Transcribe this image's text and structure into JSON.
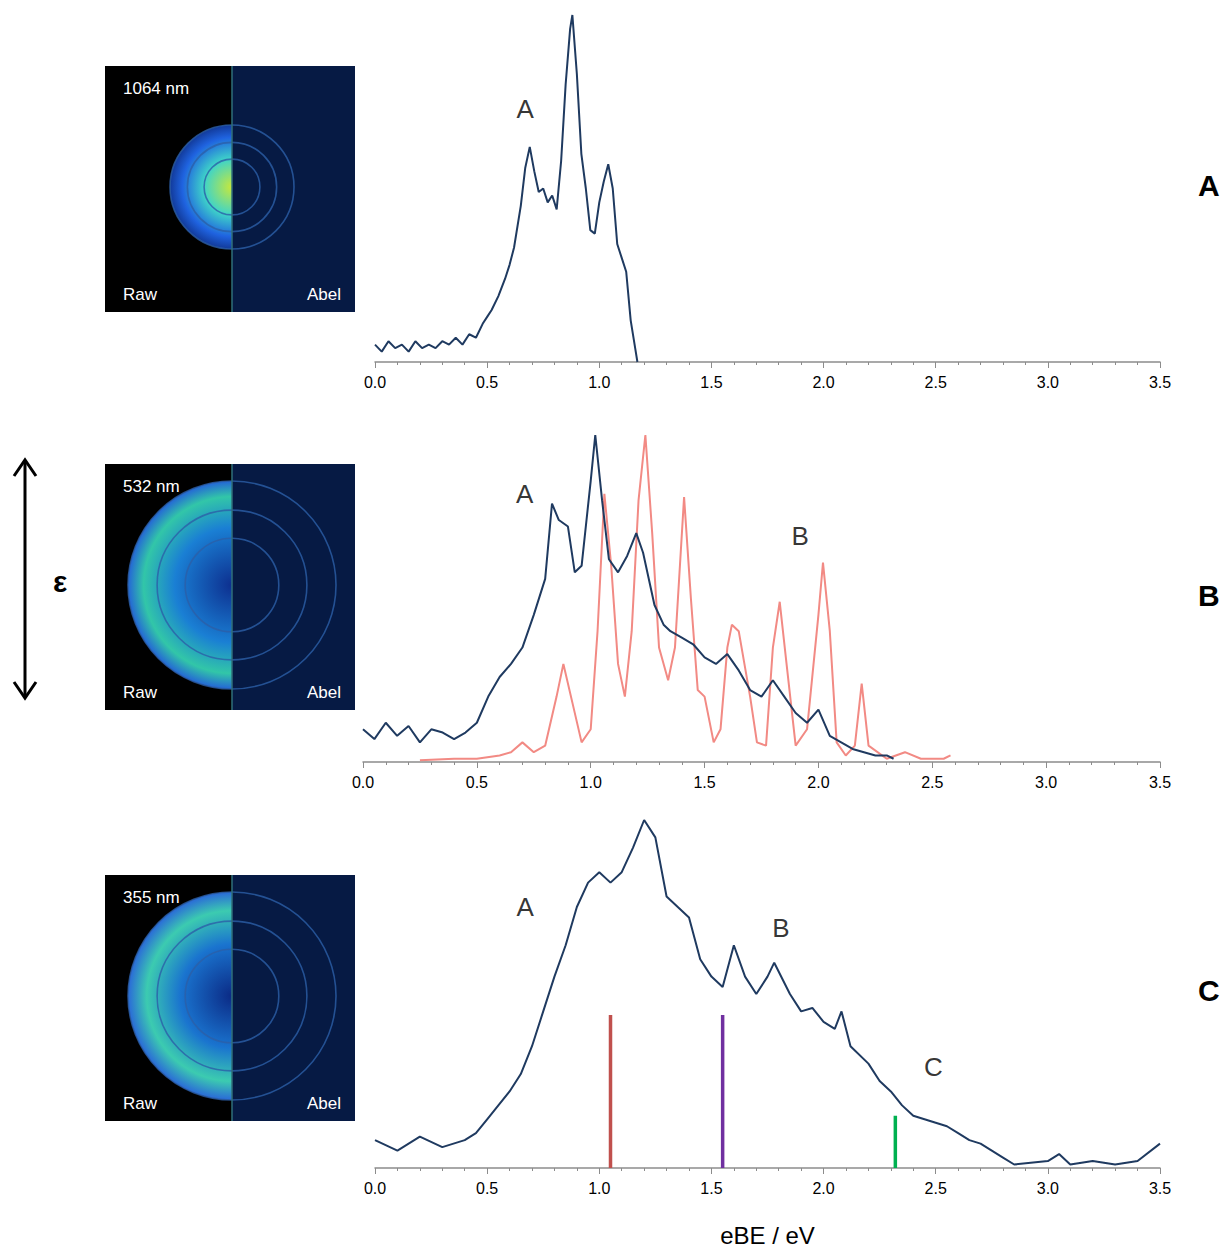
{
  "polarization_label": "ε",
  "chart_data": [
    {
      "type": "line",
      "panel": "A",
      "title": "1064 nm",
      "image_labels": [
        "Raw",
        "Abel"
      ],
      "xlim": [
        0,
        3.5
      ],
      "ylim": [
        0,
        1
      ],
      "xticks": [
        {
          "value": 0,
          "label": "0.0"
        },
        0.5,
        {
          "value": 1,
          "label": "1.0"
        },
        1.5,
        {
          "value": 2,
          "label": "2.0"
        },
        2.5,
        {
          "value": 3,
          "label": "3.0"
        },
        3.5
      ],
      "tick_labels": "x",
      "grid": false,
      "series": [
        {
          "color": "#1f3a60",
          "x": [
            0,
            0.03,
            0.06,
            0.09,
            0.12,
            0.15,
            0.18,
            0.21,
            0.24,
            0.27,
            0.3,
            0.33,
            0.36,
            0.39,
            0.42,
            0.45,
            0.48,
            0.5,
            0.52,
            0.55,
            0.58,
            0.6,
            0.62,
            0.65,
            0.67,
            0.69,
            0.71,
            0.73,
            0.75,
            0.77,
            0.79,
            0.81,
            0.83,
            0.85,
            0.87,
            0.88,
            0.9,
            0.92,
            0.94,
            0.96,
            0.98,
            1.0,
            1.02,
            1.04,
            1.06,
            1.08,
            1.1,
            1.12,
            1.14,
            1.16,
            1.17
          ],
          "values": [
            0.05,
            0.03,
            0.06,
            0.04,
            0.05,
            0.03,
            0.06,
            0.04,
            0.05,
            0.04,
            0.06,
            0.05,
            0.07,
            0.05,
            0.08,
            0.07,
            0.11,
            0.13,
            0.15,
            0.19,
            0.24,
            0.28,
            0.33,
            0.45,
            0.56,
            0.62,
            0.55,
            0.49,
            0.5,
            0.46,
            0.48,
            0.44,
            0.58,
            0.8,
            0.96,
            1.0,
            0.83,
            0.6,
            0.5,
            0.38,
            0.37,
            0.46,
            0.52,
            0.57,
            0.5,
            0.34,
            0.3,
            0.26,
            0.12,
            0.04,
            0.0
          ]
        }
      ],
      "annotations": [
        {
          "text": "A",
          "x": 0.67,
          "y": 0.73
        }
      ]
    },
    {
      "type": "line",
      "panel": "B",
      "title": "532 nm",
      "image_labels": [
        "Raw",
        "Abel"
      ],
      "xlim": [
        0,
        3.5
      ],
      "ylim": [
        0,
        1
      ],
      "xticks": [
        {
          "value": 0,
          "label": "0.0"
        },
        0.5,
        {
          "value": 1,
          "label": "1.0"
        },
        1.5,
        {
          "value": 2,
          "label": "2.0"
        },
        2.5,
        {
          "value": 3,
          "label": "3.0"
        },
        3.5
      ],
      "tick_labels": "x",
      "grid": false,
      "series": [
        {
          "color": "#f28a84",
          "x": [
            0.25,
            0.4,
            0.5,
            0.6,
            0.65,
            0.7,
            0.75,
            0.8,
            0.85,
            0.88,
            0.92,
            0.96,
            1.0,
            1.03,
            1.06,
            1.09,
            1.12,
            1.15,
            1.18,
            1.21,
            1.24,
            1.27,
            1.3,
            1.34,
            1.37,
            1.41,
            1.44,
            1.47,
            1.5,
            1.54,
            1.57,
            1.6,
            1.62,
            1.65,
            1.7,
            1.73,
            1.77,
            1.8,
            1.83,
            1.86,
            1.9,
            1.95,
            2.0,
            2.02,
            2.05,
            2.08,
            2.12,
            2.16,
            2.19,
            2.22,
            2.3,
            2.38,
            2.45,
            2.55,
            2.58
          ],
          "values": [
            0.005,
            0.01,
            0.01,
            0.02,
            0.03,
            0.06,
            0.03,
            0.05,
            0.2,
            0.3,
            0.18,
            0.06,
            0.1,
            0.4,
            0.82,
            0.6,
            0.3,
            0.2,
            0.4,
            0.8,
            1.0,
            0.7,
            0.35,
            0.25,
            0.35,
            0.81,
            0.5,
            0.22,
            0.2,
            0.06,
            0.1,
            0.35,
            0.42,
            0.4,
            0.2,
            0.06,
            0.05,
            0.35,
            0.49,
            0.3,
            0.05,
            0.1,
            0.45,
            0.61,
            0.4,
            0.06,
            0.02,
            0.05,
            0.24,
            0.05,
            0.01,
            0.03,
            0.01,
            0.01,
            0.02
          ]
        },
        {
          "color": "#1f3a60",
          "x": [
            0,
            0.05,
            0.1,
            0.15,
            0.2,
            0.25,
            0.3,
            0.35,
            0.4,
            0.45,
            0.5,
            0.55,
            0.6,
            0.65,
            0.7,
            0.75,
            0.8,
            0.83,
            0.86,
            0.9,
            0.93,
            0.96,
            1.0,
            1.02,
            1.05,
            1.08,
            1.12,
            1.16,
            1.2,
            1.23,
            1.28,
            1.32,
            1.35,
            1.4,
            1.45,
            1.5,
            1.55,
            1.6,
            1.65,
            1.7,
            1.75,
            1.8,
            1.85,
            1.9,
            1.95,
            2.0,
            2.05,
            2.1,
            2.15,
            2.2,
            2.25,
            2.3,
            2.33
          ],
          "values": [
            0.1,
            0.07,
            0.12,
            0.08,
            0.11,
            0.06,
            0.1,
            0.09,
            0.07,
            0.09,
            0.12,
            0.2,
            0.26,
            0.3,
            0.35,
            0.45,
            0.56,
            0.79,
            0.74,
            0.72,
            0.58,
            0.6,
            0.86,
            1.0,
            0.8,
            0.62,
            0.58,
            0.63,
            0.7,
            0.64,
            0.48,
            0.42,
            0.4,
            0.38,
            0.36,
            0.32,
            0.3,
            0.33,
            0.28,
            0.22,
            0.2,
            0.25,
            0.2,
            0.15,
            0.12,
            0.16,
            0.08,
            0.06,
            0.04,
            0.03,
            0.02,
            0.02,
            0.01
          ]
        }
      ],
      "annotations": [
        {
          "text": "A",
          "x": 0.71,
          "y": 0.82
        },
        {
          "text": "B",
          "x": 1.92,
          "y": 0.69
        }
      ]
    },
    {
      "type": "line",
      "panel": "C",
      "title": "355 nm",
      "image_labels": [
        "Raw",
        "Abel"
      ],
      "xlabel": "eBE / eV",
      "xlim": [
        0,
        3.5
      ],
      "ylim": [
        0,
        1
      ],
      "xticks": [
        {
          "value": 0,
          "label": "0.0"
        },
        0.5,
        {
          "value": 1,
          "label": "1.0"
        },
        1.5,
        {
          "value": 2,
          "label": "2.0"
        },
        2.5,
        {
          "value": 3,
          "label": "3.0"
        },
        3.5
      ],
      "tick_labels": "x",
      "grid": false,
      "series": [
        {
          "color": "#1f3a60",
          "x": [
            0,
            0.1,
            0.2,
            0.3,
            0.4,
            0.45,
            0.5,
            0.55,
            0.6,
            0.65,
            0.7,
            0.75,
            0.8,
            0.85,
            0.9,
            0.95,
            1.0,
            1.05,
            1.1,
            1.15,
            1.2,
            1.25,
            1.3,
            1.35,
            1.4,
            1.45,
            1.5,
            1.55,
            1.6,
            1.65,
            1.7,
            1.75,
            1.78,
            1.85,
            1.9,
            1.95,
            2.0,
            2.05,
            2.08,
            2.12,
            2.2,
            2.25,
            2.3,
            2.35,
            2.4,
            2.45,
            2.5,
            2.55,
            2.6,
            2.65,
            2.7,
            2.75,
            2.8,
            2.85,
            3.0,
            3.05,
            3.1,
            3.2,
            3.3,
            3.4,
            3.5
          ],
          "values": [
            0.08,
            0.05,
            0.09,
            0.06,
            0.08,
            0.1,
            0.14,
            0.18,
            0.22,
            0.27,
            0.35,
            0.45,
            0.55,
            0.64,
            0.75,
            0.82,
            0.85,
            0.82,
            0.85,
            0.92,
            1.0,
            0.95,
            0.78,
            0.75,
            0.72,
            0.6,
            0.55,
            0.52,
            0.64,
            0.55,
            0.5,
            0.55,
            0.59,
            0.5,
            0.45,
            0.46,
            0.42,
            0.4,
            0.45,
            0.35,
            0.3,
            0.25,
            0.22,
            0.18,
            0.15,
            0.14,
            0.13,
            0.12,
            0.1,
            0.08,
            0.07,
            0.05,
            0.03,
            0.01,
            0.02,
            0.04,
            0.01,
            0.02,
            0.01,
            0.02,
            0.07
          ]
        }
      ],
      "vlines": [
        {
          "x": 1.05,
          "y": 0.44,
          "color": "#c0504d"
        },
        {
          "x": 1.55,
          "y": 0.44,
          "color": "#7030a0"
        },
        {
          "x": 2.32,
          "y": 0.15,
          "color": "#00b050"
        }
      ],
      "annotations": [
        {
          "text": "A",
          "x": 0.67,
          "y": 0.75
        },
        {
          "text": "B",
          "x": 1.81,
          "y": 0.69
        },
        {
          "text": "C",
          "x": 2.49,
          "y": 0.29
        }
      ]
    }
  ]
}
